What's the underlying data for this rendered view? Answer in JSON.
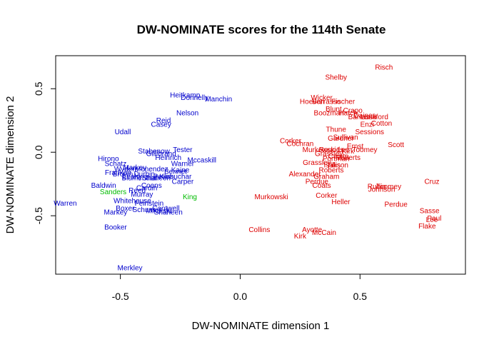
{
  "chart_data": {
    "type": "scatter",
    "title": "DW-NOMINATE scores for the 114th Senate",
    "xlabel": "DW-NOMINATE dimension 1",
    "ylabel": "DW-NOMINATE dimension 2",
    "xlim": [
      -0.77,
      0.94
    ],
    "ylim": [
      -0.96,
      0.76
    ],
    "xticks": [
      -0.5,
      0.0,
      0.5
    ],
    "yticks": [
      -0.5,
      0.0,
      0.5
    ],
    "xtick_labels": [
      "-0.5",
      "0.0",
      "0.5"
    ],
    "ytick_labels": [
      "-0.5",
      "0.0",
      "0.5"
    ],
    "grid": false,
    "legend": "none",
    "colors": {
      "D": "#0000cc",
      "R": "#dd0000",
      "I": "#00bb00"
    },
    "series": [
      {
        "party": "D",
        "points": [
          {
            "label": "Heitkamp",
            "x": -0.23,
            "y": 0.45
          },
          {
            "label": "Donnelly",
            "x": -0.19,
            "y": 0.43
          },
          {
            "label": "Manchin",
            "x": -0.09,
            "y": 0.42
          },
          {
            "label": "Nelson",
            "x": -0.22,
            "y": 0.31
          },
          {
            "label": "Reid",
            "x": -0.32,
            "y": 0.25
          },
          {
            "label": "Casey",
            "x": -0.33,
            "y": 0.22
          },
          {
            "label": "Udall",
            "x": -0.49,
            "y": 0.16
          },
          {
            "label": "Tester",
            "x": -0.24,
            "y": 0.02
          },
          {
            "label": "Stabenow",
            "x": -0.36,
            "y": 0.01
          },
          {
            "label": "Gillibrand",
            "x": -0.33,
            "y": -0.01
          },
          {
            "label": "Heinrich",
            "x": -0.3,
            "y": -0.04
          },
          {
            "label": "Mccaskill",
            "x": -0.16,
            "y": -0.06
          },
          {
            "label": "Warner",
            "x": -0.24,
            "y": -0.09
          },
          {
            "label": "Hirono",
            "x": -0.55,
            "y": -0.05
          },
          {
            "label": "Schatz",
            "x": -0.52,
            "y": -0.09
          },
          {
            "label": "Wyden",
            "x": -0.48,
            "y": -0.13
          },
          {
            "label": "Franken",
            "x": -0.51,
            "y": -0.16
          },
          {
            "label": "Markey",
            "x": -0.44,
            "y": -0.12
          },
          {
            "label": "Menendez",
            "x": -0.37,
            "y": -0.13
          },
          {
            "label": "Kaine",
            "x": -0.25,
            "y": -0.14
          },
          {
            "label": "Bennet",
            "x": -0.27,
            "y": -0.15
          },
          {
            "label": "Brown",
            "x": -0.49,
            "y": -0.17
          },
          {
            "label": "Durbin",
            "x": -0.4,
            "y": -0.17
          },
          {
            "label": "Klobuchar",
            "x": -0.27,
            "y": -0.19
          },
          {
            "label": "Leahy",
            "x": -0.45,
            "y": -0.19
          },
          {
            "label": "Blumenthal",
            "x": -0.42,
            "y": -0.2
          },
          {
            "label": "Peters",
            "x": -0.32,
            "y": -0.19
          },
          {
            "label": "Shaheen",
            "x": -0.35,
            "y": -0.2
          },
          {
            "label": "Carper",
            "x": -0.24,
            "y": -0.23
          },
          {
            "label": "Coons",
            "x": -0.37,
            "y": -0.26
          },
          {
            "label": "Baldwin",
            "x": -0.57,
            "y": -0.26
          },
          {
            "label": "Reed",
            "x": -0.43,
            "y": -0.3
          },
          {
            "label": "Cardin",
            "x": -0.39,
            "y": -0.28
          },
          {
            "label": "Murray",
            "x": -0.41,
            "y": -0.33
          },
          {
            "label": "Whitehouse",
            "x": -0.45,
            "y": -0.38
          },
          {
            "label": "Boxer",
            "x": -0.48,
            "y": -0.44
          },
          {
            "label": "Schumer",
            "x": -0.39,
            "y": -0.45
          },
          {
            "label": "Feinstein",
            "x": -0.38,
            "y": -0.4
          },
          {
            "label": "Cantwell",
            "x": -0.31,
            "y": -0.44
          },
          {
            "label": "Mikulski",
            "x": -0.34,
            "y": -0.46
          },
          {
            "label": "Shaheen",
            "x": -0.3,
            "y": -0.47
          },
          {
            "label": "Warren",
            "x": -0.73,
            "y": -0.4
          },
          {
            "label": "Markey",
            "x": -0.52,
            "y": -0.47
          },
          {
            "label": "Booker",
            "x": -0.52,
            "y": -0.59
          },
          {
            "label": "Merkley",
            "x": -0.46,
            "y": -0.91
          }
        ]
      },
      {
        "party": "I",
        "points": [
          {
            "label": "Sanders",
            "x": -0.53,
            "y": -0.31
          },
          {
            "label": "King",
            "x": -0.21,
            "y": -0.35
          }
        ]
      },
      {
        "party": "R",
        "points": [
          {
            "label": "Risch",
            "x": 0.6,
            "y": 0.67
          },
          {
            "label": "Shelby",
            "x": 0.4,
            "y": 0.59
          },
          {
            "label": "Wicker",
            "x": 0.34,
            "y": 0.43
          },
          {
            "label": "Hoeven",
            "x": 0.3,
            "y": 0.4
          },
          {
            "label": "Barrasso",
            "x": 0.36,
            "y": 0.4
          },
          {
            "label": "Fischer",
            "x": 0.43,
            "y": 0.4
          },
          {
            "label": "Blunt",
            "x": 0.39,
            "y": 0.34
          },
          {
            "label": "Crapo",
            "x": 0.47,
            "y": 0.33
          },
          {
            "label": "Boozman",
            "x": 0.37,
            "y": 0.31
          },
          {
            "label": "Hatch",
            "x": 0.45,
            "y": 0.31
          },
          {
            "label": "Daines",
            "x": 0.52,
            "y": 0.29
          },
          {
            "label": "Barrasso",
            "x": 0.51,
            "y": 0.28
          },
          {
            "label": "Lankford",
            "x": 0.56,
            "y": 0.28
          },
          {
            "label": "Enzi",
            "x": 0.53,
            "y": 0.22
          },
          {
            "label": "Cotton",
            "x": 0.59,
            "y": 0.23
          },
          {
            "label": "Thune",
            "x": 0.4,
            "y": 0.18
          },
          {
            "label": "Sessions",
            "x": 0.54,
            "y": 0.16
          },
          {
            "label": "Sullivan",
            "x": 0.44,
            "y": 0.12
          },
          {
            "label": "Gardner",
            "x": 0.42,
            "y": 0.11
          },
          {
            "label": "Corker",
            "x": 0.21,
            "y": 0.09
          },
          {
            "label": "Cochran",
            "x": 0.25,
            "y": 0.07
          },
          {
            "label": "Ernst",
            "x": 0.48,
            "y": 0.05
          },
          {
            "label": "Scott",
            "x": 0.65,
            "y": 0.06
          },
          {
            "label": "Murkowski",
            "x": 0.33,
            "y": 0.02
          },
          {
            "label": "Lee",
            "x": 0.43,
            "y": 0.02
          },
          {
            "label": "Rounds",
            "x": 0.38,
            "y": 0.02
          },
          {
            "label": "Grassley",
            "x": 0.37,
            "y": -0.01
          },
          {
            "label": "Kirk",
            "x": 0.45,
            "y": 0.01
          },
          {
            "label": "Toomey",
            "x": 0.52,
            "y": 0.02
          },
          {
            "label": "Capito",
            "x": 0.41,
            "y": -0.03
          },
          {
            "label": "Portman",
            "x": 0.4,
            "y": -0.05
          },
          {
            "label": "Roberts",
            "x": 0.45,
            "y": -0.04
          },
          {
            "label": "Grassley",
            "x": 0.32,
            "y": -0.08
          },
          {
            "label": "Isakson",
            "x": 0.4,
            "y": -0.1
          },
          {
            "label": "Tillis",
            "x": 0.39,
            "y": -0.1
          },
          {
            "label": "Roberts",
            "x": 0.38,
            "y": -0.14
          },
          {
            "label": "Alexander",
            "x": 0.27,
            "y": -0.17
          },
          {
            "label": "Graham",
            "x": 0.36,
            "y": -0.19
          },
          {
            "label": "Perdue",
            "x": 0.32,
            "y": -0.23
          },
          {
            "label": "Coats",
            "x": 0.34,
            "y": -0.26
          },
          {
            "label": "Rubio",
            "x": 0.57,
            "y": -0.27
          },
          {
            "label": "Toomey",
            "x": 0.62,
            "y": -0.27
          },
          {
            "label": "Johnson",
            "x": 0.59,
            "y": -0.29
          },
          {
            "label": "Cruz",
            "x": 0.8,
            "y": -0.23
          },
          {
            "label": "Murkowski",
            "x": 0.13,
            "y": -0.35
          },
          {
            "label": "Corker",
            "x": 0.36,
            "y": -0.34
          },
          {
            "label": "Heller",
            "x": 0.42,
            "y": -0.39
          },
          {
            "label": "Perdue",
            "x": 0.65,
            "y": -0.41
          },
          {
            "label": "Sasse",
            "x": 0.79,
            "y": -0.46
          },
          {
            "label": "Paul",
            "x": 0.81,
            "y": -0.52
          },
          {
            "label": "Lee",
            "x": 0.8,
            "y": -0.53
          },
          {
            "label": "Flake",
            "x": 0.78,
            "y": -0.58
          },
          {
            "label": "Collins",
            "x": 0.08,
            "y": -0.61
          },
          {
            "label": "Ayotte",
            "x": 0.3,
            "y": -0.61
          },
          {
            "label": "McCain",
            "x": 0.35,
            "y": -0.63
          },
          {
            "label": "Kirk",
            "x": 0.25,
            "y": -0.66
          }
        ]
      }
    ]
  }
}
